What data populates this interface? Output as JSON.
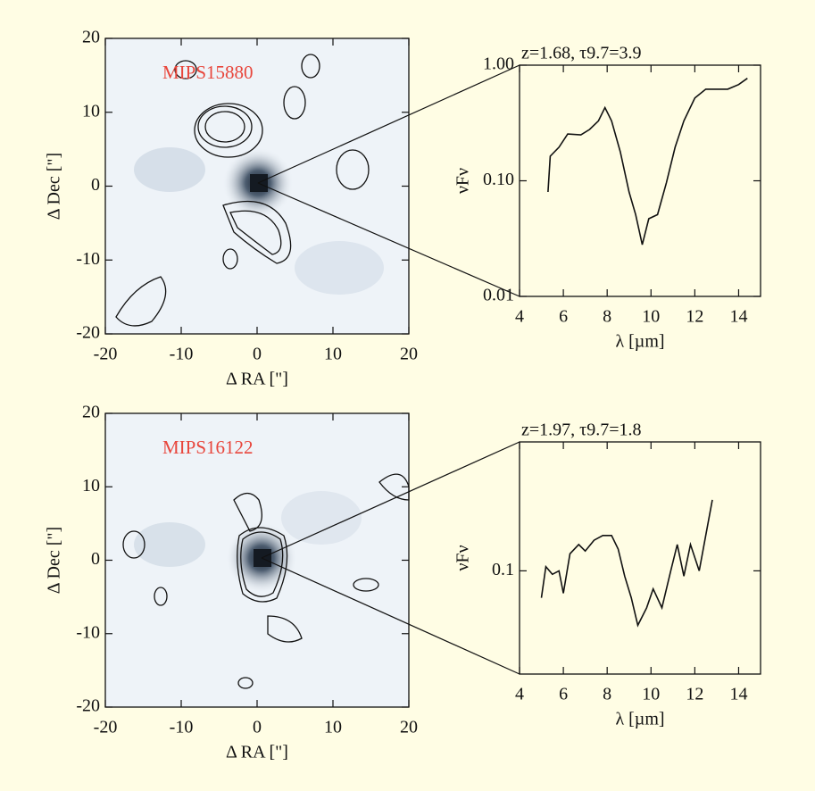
{
  "chart_data": [
    {
      "type": "image",
      "annotation": "MIPS15880",
      "xlabel": "Δ RA [\"]",
      "ylabel": "Δ Dec [\"]",
      "xlim": [
        -20,
        20
      ],
      "ylim": [
        -20,
        20
      ],
      "xticks": [
        -20,
        -10,
        0,
        10,
        20
      ],
      "yticks": [
        -20,
        -10,
        0,
        10,
        20
      ]
    },
    {
      "type": "line",
      "title": "z=1.68, τ9.7=3.9",
      "xlabel": "λ [µm]",
      "ylabel": "νFν",
      "log_y": true,
      "color": "#111111",
      "xlim": [
        4,
        15
      ],
      "ylim": [
        0.01,
        1
      ],
      "xticks": [
        4,
        6,
        8,
        10,
        12,
        14
      ],
      "yticks": [
        {
          "value": 0.01,
          "label": "0.01"
        },
        {
          "value": 0.1,
          "label": "0.10"
        },
        {
          "value": 1,
          "label": "1.00"
        }
      ],
      "x": [
        5.3,
        5.4,
        5.8,
        6.2,
        6.8,
        7.2,
        7.6,
        7.9,
        8.2,
        8.6,
        9.0,
        9.3,
        9.6,
        9.9,
        10.3,
        10.7,
        11.1,
        11.5,
        12.0,
        12.5,
        13.0,
        13.5,
        14.0,
        14.4
      ],
      "values": [
        0.08,
        0.163,
        0.195,
        0.254,
        0.25,
        0.278,
        0.33,
        0.43,
        0.33,
        0.178,
        0.08,
        0.051,
        0.028,
        0.047,
        0.051,
        0.096,
        0.195,
        0.33,
        0.52,
        0.62,
        0.62,
        0.62,
        0.68,
        0.77
      ]
    },
    {
      "type": "image",
      "annotation": "MIPS16122",
      "xlabel": "Δ RA [\"]",
      "ylabel": "Δ Dec [\"]",
      "xlim": [
        -20,
        20
      ],
      "ylim": [
        -20,
        20
      ],
      "xticks": [
        -20,
        -10,
        0,
        10,
        20
      ],
      "yticks": [
        -20,
        -10,
        0,
        10,
        20
      ]
    },
    {
      "type": "line",
      "title": "z=1.97, τ9.7=1.8",
      "xlabel": "λ [µm]",
      "ylabel": "νFν",
      "log_y": true,
      "color": "#111111",
      "xlim": [
        4,
        15
      ],
      "ylim": [
        0.03,
        0.45
      ],
      "xticks": [
        4,
        6,
        8,
        10,
        12,
        14
      ],
      "yticks": [
        0.1
      ],
      "x": [
        5.0,
        5.2,
        5.5,
        5.8,
        6.0,
        6.3,
        6.7,
        7.0,
        7.4,
        7.8,
        8.2,
        8.5,
        8.8,
        9.1,
        9.4,
        9.8,
        10.1,
        10.5,
        10.9,
        11.2,
        11.5,
        11.8,
        12.2,
        12.5,
        12.8
      ],
      "values": [
        0.073,
        0.105,
        0.096,
        0.1,
        0.077,
        0.122,
        0.136,
        0.126,
        0.143,
        0.151,
        0.151,
        0.129,
        0.094,
        0.073,
        0.053,
        0.065,
        0.081,
        0.065,
        0.1,
        0.136,
        0.094,
        0.136,
        0.1,
        0.151,
        0.229
      ]
    }
  ]
}
